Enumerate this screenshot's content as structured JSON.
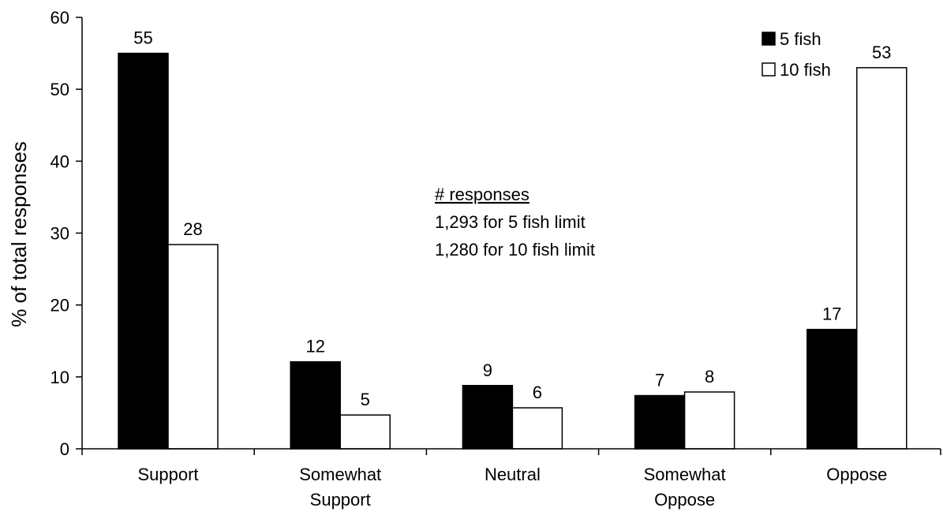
{
  "chart_data": {
    "type": "bar",
    "categories": [
      [
        "Support"
      ],
      [
        "Somewhat",
        "Support"
      ],
      [
        "Neutral"
      ],
      [
        "Somewhat",
        "Oppose"
      ],
      [
        "Oppose"
      ]
    ],
    "series": [
      {
        "name": "5 fish",
        "values": [
          55,
          12.1,
          8.8,
          7.4,
          16.6
        ],
        "labels": [
          "55",
          "12",
          "9",
          "7",
          "17"
        ],
        "color": "#000000"
      },
      {
        "name": "10 fish",
        "values": [
          28.4,
          4.7,
          5.7,
          7.9,
          53
        ],
        "labels": [
          "28",
          "5",
          "6",
          "8",
          "53"
        ],
        "color": "#ffffff"
      }
    ],
    "ylabel": "% of total responses",
    "ylim": [
      0,
      60
    ],
    "yticks": [
      0,
      10,
      20,
      30,
      40,
      50,
      60
    ],
    "legend_position": "top-right",
    "grid": false
  },
  "annotation": {
    "heading": "# responses",
    "lines": [
      "1,293 for 5 fish limit",
      "1,280 for 10 fish limit"
    ]
  }
}
